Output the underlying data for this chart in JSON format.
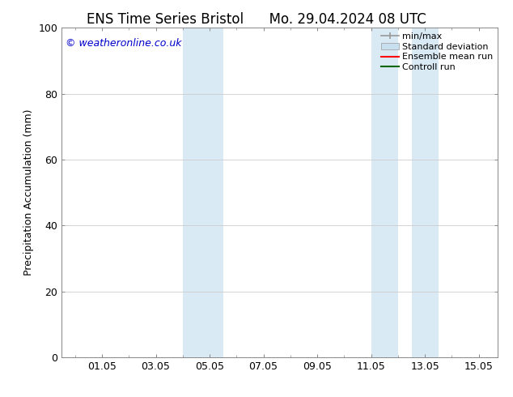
{
  "title_left": "ENS Time Series Bristol",
  "title_right": "Mo. 29.04.2024 08 UTC",
  "ylabel": "Precipitation Accumulation (mm)",
  "xlabel": "",
  "watermark": "© weatheronline.co.uk",
  "watermark_color": "#0000cc",
  "ylim": [
    0,
    100
  ],
  "yticks": [
    0,
    20,
    40,
    60,
    80,
    100
  ],
  "xtick_labels": [
    "01.05",
    "03.05",
    "05.05",
    "07.05",
    "09.05",
    "11.05",
    "13.05",
    "15.05"
  ],
  "xtick_positions": [
    1.0,
    3.0,
    5.0,
    7.0,
    9.0,
    11.0,
    13.0,
    15.0
  ],
  "xlim_min": -0.5,
  "xlim_max": 15.7,
  "background_color": "#ffffff",
  "plot_bg_color": "#ffffff",
  "shaded_regions": [
    {
      "xmin": 4.0,
      "xmax": 5.5,
      "color": "#daeaf5"
    },
    {
      "xmin": 11.0,
      "xmax": 12.0,
      "color": "#daeaf5"
    },
    {
      "xmin": 12.5,
      "xmax": 13.5,
      "color": "#daeaf5"
    }
  ],
  "legend_items": [
    {
      "label": "min/max",
      "color": "#999999",
      "type": "minmax"
    },
    {
      "label": "Standard deviation",
      "color": "#c8dff0",
      "type": "bar"
    },
    {
      "label": "Ensemble mean run",
      "color": "#ff0000",
      "type": "line"
    },
    {
      "label": "Controll run",
      "color": "#006600",
      "type": "line"
    }
  ],
  "grid_color": "#cccccc",
  "title_fontsize": 12,
  "label_fontsize": 9,
  "tick_fontsize": 9,
  "legend_fontsize": 8,
  "watermark_fontsize": 9,
  "dpi": 100,
  "figsize": [
    6.34,
    4.9
  ]
}
